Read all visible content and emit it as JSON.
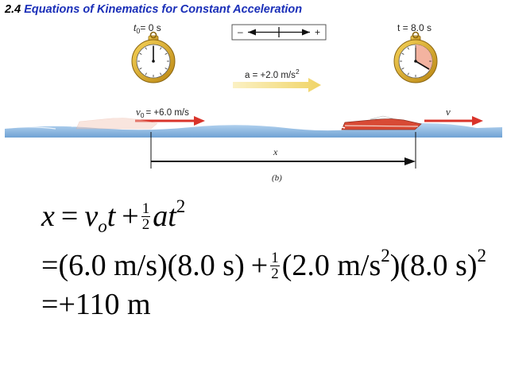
{
  "slide": {
    "title_number": "2.4",
    "title_text": "Equations of Kinematics for Constant Acceleration"
  },
  "figure": {
    "t0_label": "= 0 s",
    "t0_symbol": "t",
    "t0_sub": "0",
    "t_label": "t = 8.0 s",
    "axis_minus": "–",
    "axis_plus": "+",
    "accel_label": "a = +2.0 m/s",
    "accel_sup": "2",
    "v0_symbol": "v",
    "v0_sub": "0",
    "v0_label": "= +6.0 m/s",
    "v_label": "v",
    "x_label": "x",
    "caption": "(b)",
    "colors": {
      "stopwatch_gold": "#d9a521",
      "water": "#8fb9e0",
      "velocity_arrow": "#d9342b",
      "accel_arrow": "#f2dd7a",
      "elapsed_wedge": "#f3b3a0"
    }
  },
  "equations": {
    "line1": {
      "x": "x",
      "eq": "=",
      "v": "v",
      "v_sub": "o",
      "t": "t",
      "plus": "+",
      "num": "1",
      "den": "2",
      "at": "at",
      "sup": "2"
    },
    "line2": {
      "eq": "=",
      "p1": "(6.0 m/s)(8.0 s)",
      "plus": "+",
      "num": "1",
      "den": "2",
      "p2a": "(2.0 m/s",
      "p2sup": "2",
      "p2b": ")(8.0 s)",
      "sup": "2"
    },
    "line3": {
      "eq": "=",
      "result": "+110 m"
    }
  }
}
